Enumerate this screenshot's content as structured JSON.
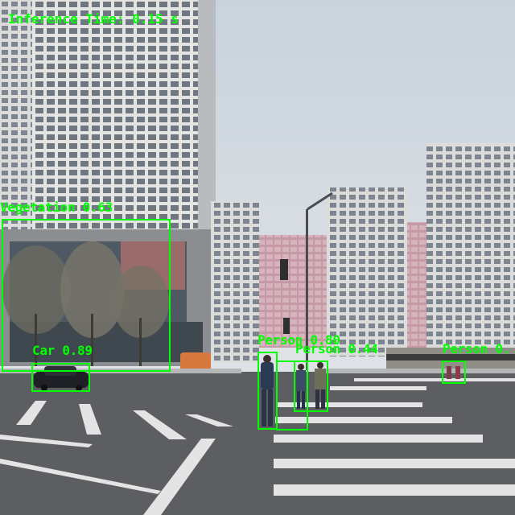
{
  "overlay": {
    "inference_text": "Inference Time: 0.15 s",
    "box_color": "#00ff00"
  },
  "detections": [
    {
      "label": "Vegetation 0.63",
      "class": "Vegetation",
      "score": 0.63
    },
    {
      "label": "Car 0.89",
      "class": "Car",
      "score": 0.89
    },
    {
      "label": "Person 0.80",
      "class": "Person",
      "score": 0.8
    },
    {
      "label": "Person 0.44",
      "class": "Person",
      "score": 0.44
    },
    {
      "label": "Person 0.",
      "class": "Person"
    }
  ]
}
